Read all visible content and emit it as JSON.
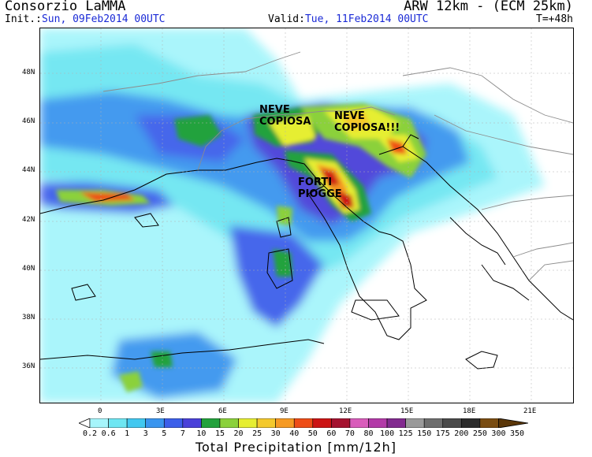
{
  "header": {
    "org": "Consorzio LaMMA",
    "model": "ARW 12km - (ECM 25km)",
    "init_label": "Init.:",
    "init_value": "Sun, 09Feb2014 00UTC",
    "valid_label": "Valid:",
    "valid_value": "Tue, 11Feb2014 00UTC",
    "lead": "T=+48h"
  },
  "map": {
    "lat_labels": [
      "48N",
      "46N",
      "44N",
      "42N",
      "40N",
      "38N",
      "36N"
    ],
    "lon_labels": [
      "0",
      "3E",
      "6E",
      "9E",
      "12E",
      "15E",
      "18E",
      "21E"
    ],
    "annotations": [
      {
        "lines": [
          "NEVE",
          "COPIOSA"
        ]
      },
      {
        "lines": [
          "NEVE",
          "COPIOSA!!!"
        ]
      },
      {
        "lines": [
          "FORTI",
          "PIOGGE"
        ]
      }
    ]
  },
  "colorbar": {
    "labels": [
      "0.2",
      "0.6",
      "1",
      "3",
      "5",
      "7",
      "10",
      "15",
      "20",
      "25",
      "30",
      "40",
      "50",
      "60",
      "70",
      "80",
      "100",
      "125",
      "150",
      "175",
      "200",
      "250",
      "300",
      "350"
    ],
    "colors": [
      "#ffffff",
      "#a6f5fb",
      "#6ee6f2",
      "#42c8f0",
      "#3a95ef",
      "#3c5fea",
      "#4a41d9",
      "#23a23d",
      "#8bd13b",
      "#e6ee31",
      "#f4c92c",
      "#f69a23",
      "#ee4d17",
      "#cc1414",
      "#a51330",
      "#d95cbb",
      "#b33aa8",
      "#822a8f",
      "#9a9a9a",
      "#6e6e6e",
      "#4a4a4a",
      "#2d2d2d",
      "#7a4d12",
      "#5a3608"
    ],
    "title": "Total Precipitation [mm/12h]"
  },
  "colors": {
    "text_blue": "#1a2ad6",
    "coast": "#000000",
    "border": "#8c8c8c"
  }
}
